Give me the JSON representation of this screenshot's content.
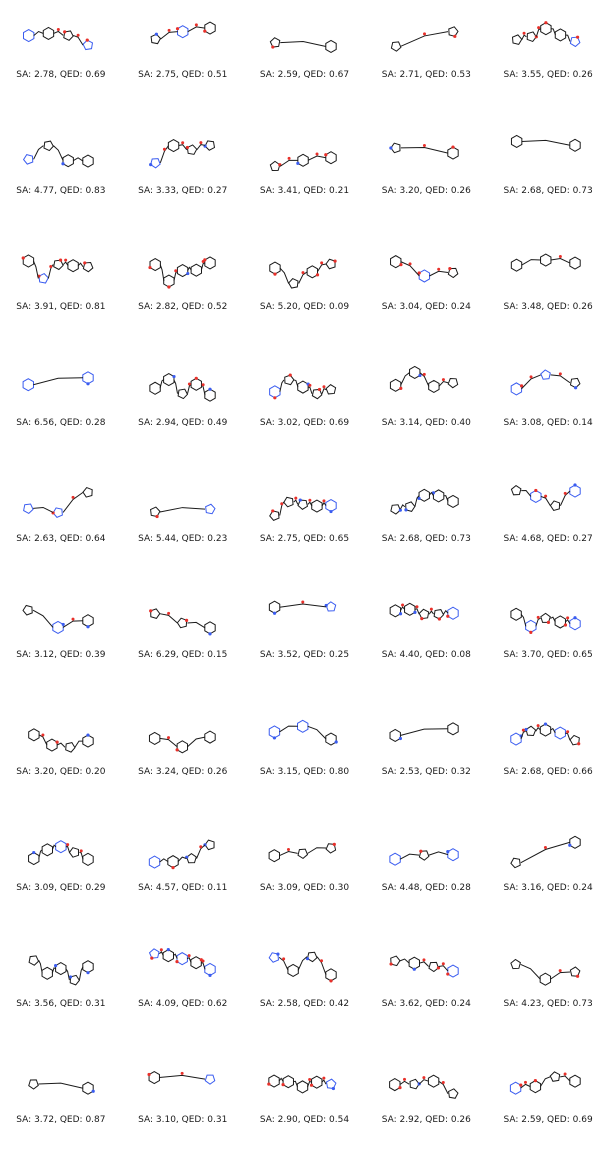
{
  "grid": {
    "molecules": [
      {
        "sa": "2.78",
        "qed": "0.69"
      },
      {
        "sa": "2.75",
        "qed": "0.51"
      },
      {
        "sa": "2.59",
        "qed": "0.67"
      },
      {
        "sa": "2.71",
        "qed": "0.53"
      },
      {
        "sa": "3.55",
        "qed": "0.26"
      },
      {
        "sa": "4.77",
        "qed": "0.83"
      },
      {
        "sa": "3.33",
        "qed": "0.27"
      },
      {
        "sa": "3.41",
        "qed": "0.21"
      },
      {
        "sa": "3.20",
        "qed": "0.26"
      },
      {
        "sa": "2.68",
        "qed": "0.73"
      },
      {
        "sa": "3.91",
        "qed": "0.81"
      },
      {
        "sa": "2.82",
        "qed": "0.52"
      },
      {
        "sa": "5.20",
        "qed": "0.09"
      },
      {
        "sa": "3.04",
        "qed": "0.24"
      },
      {
        "sa": "3.48",
        "qed": "0.26"
      },
      {
        "sa": "6.56",
        "qed": "0.28"
      },
      {
        "sa": "2.94",
        "qed": "0.49"
      },
      {
        "sa": "3.02",
        "qed": "0.69"
      },
      {
        "sa": "3.14",
        "qed": "0.40"
      },
      {
        "sa": "3.08",
        "qed": "0.14"
      },
      {
        "sa": "2.63",
        "qed": "0.64"
      },
      {
        "sa": "5.44",
        "qed": "0.23"
      },
      {
        "sa": "2.75",
        "qed": "0.65"
      },
      {
        "sa": "2.68",
        "qed": "0.73"
      },
      {
        "sa": "4.68",
        "qed": "0.27"
      },
      {
        "sa": "3.12",
        "qed": "0.39"
      },
      {
        "sa": "6.29",
        "qed": "0.15"
      },
      {
        "sa": "3.52",
        "qed": "0.25"
      },
      {
        "sa": "4.40",
        "qed": "0.08"
      },
      {
        "sa": "3.70",
        "qed": "0.65"
      },
      {
        "sa": "3.20",
        "qed": "0.20"
      },
      {
        "sa": "3.24",
        "qed": "0.26"
      },
      {
        "sa": "3.15",
        "qed": "0.80"
      },
      {
        "sa": "2.53",
        "qed": "0.32"
      },
      {
        "sa": "2.68",
        "qed": "0.66"
      },
      {
        "sa": "3.09",
        "qed": "0.29"
      },
      {
        "sa": "4.57",
        "qed": "0.11"
      },
      {
        "sa": "3.09",
        "qed": "0.30"
      },
      {
        "sa": "4.48",
        "qed": "0.28"
      },
      {
        "sa": "3.16",
        "qed": "0.24"
      },
      {
        "sa": "3.56",
        "qed": "0.31"
      },
      {
        "sa": "4.09",
        "qed": "0.62"
      },
      {
        "sa": "2.58",
        "qed": "0.42"
      },
      {
        "sa": "3.62",
        "qed": "0.24"
      },
      {
        "sa": "4.23",
        "qed": "0.73"
      },
      {
        "sa": "3.72",
        "qed": "0.87"
      },
      {
        "sa": "3.10",
        "qed": "0.31"
      },
      {
        "sa": "2.90",
        "qed": "0.54"
      },
      {
        "sa": "2.92",
        "qed": "0.26"
      },
      {
        "sa": "2.59",
        "qed": "0.69"
      }
    ]
  },
  "colors": {
    "bond": "#1a1a1a",
    "oxygen": "#e8302a",
    "nitrogen": "#3a5cf0",
    "fluorine": "#33c4b4",
    "text": "#1a1a1a"
  }
}
